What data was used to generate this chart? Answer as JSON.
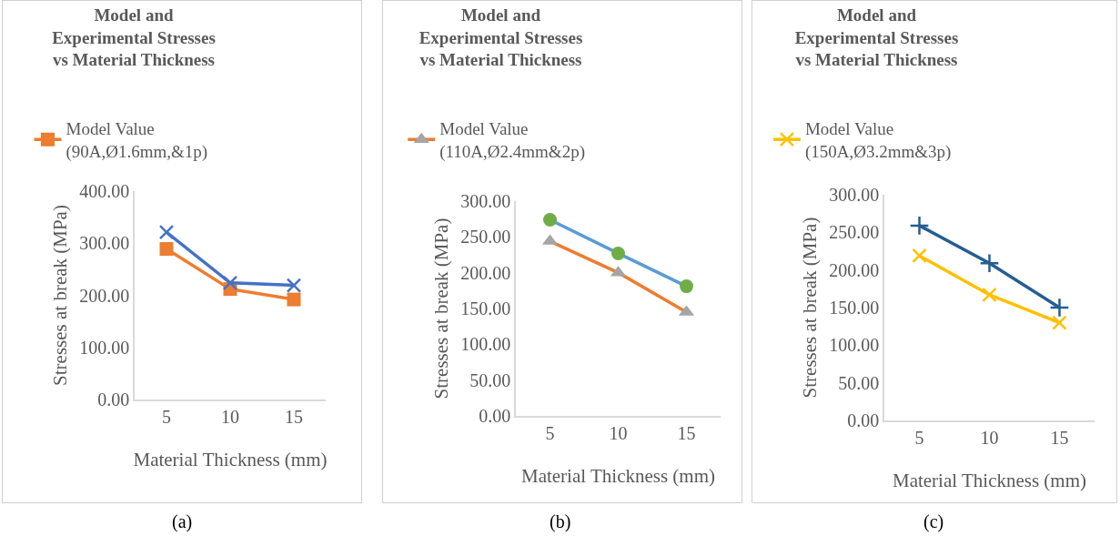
{
  "chart_data": [
    {
      "type": "line",
      "title": "Model and Experimental Stresses vs Material Thickness",
      "xlabel": "Material Thickness (mm)",
      "ylabel": "Stresses at break (MPa)",
      "categories": [
        "5",
        "10",
        "15"
      ],
      "ylim": [
        0,
        400
      ],
      "yticks": [
        {
          "value": 0,
          "label": "0.00"
        },
        {
          "value": 100,
          "label": "100.00"
        },
        {
          "value": 200,
          "label": "200.00"
        },
        {
          "value": 300,
          "label": "300.00"
        },
        {
          "value": 400,
          "label": "400.00"
        }
      ],
      "grid": false,
      "legend": "top",
      "annotations": [
        "(a)"
      ],
      "series": [
        {
          "name": "Model Value (90A,Ø1.6mm,&1p)",
          "color": "#ed7d31",
          "marker": "square",
          "values": [
            289,
            212,
            192
          ]
        },
        {
          "color": "#4472c4",
          "marker": "cross",
          "values": [
            321,
            224,
            219
          ]
        }
      ]
    },
    {
      "type": "line",
      "title": "Model and Experimental Stresses vs Material Thickness",
      "xlabel": "Material Thickness (mm)",
      "ylabel": "Stresses at break (MPa)",
      "categories": [
        "5",
        "10",
        "15"
      ],
      "ylim": [
        0,
        300
      ],
      "yticks": [
        {
          "value": 0,
          "label": "0.00"
        },
        {
          "value": 50,
          "label": "50.00"
        },
        {
          "value": 100,
          "label": "100.00"
        },
        {
          "value": 150,
          "label": "150.00"
        },
        {
          "value": 200,
          "label": "200.00"
        },
        {
          "value": 250,
          "label": "250.00"
        },
        {
          "value": 300,
          "label": "300.00"
        }
      ],
      "grid": false,
      "legend": "top",
      "annotations": [
        "(b)"
      ],
      "series": [
        {
          "name": "Model Value (110A,Ø2.4mm&2p)",
          "color": "#ed7d31",
          "colors": [
            "#a5a5a5",
            "#a5a5a5",
            "#a5a5a5"
          ],
          "marker": "triangle",
          "values": [
            244,
            200,
            145
          ]
        },
        {
          "color": "#5b9bd5",
          "colors": [
            "#70ad47",
            "#70ad47",
            "#70ad47"
          ],
          "marker": "circle",
          "values": [
            274,
            227,
            181
          ]
        }
      ]
    },
    {
      "type": "line",
      "title": "Model and Experimental Stresses vs Material Thickness",
      "xlabel": "Material Thickness (mm)",
      "ylabel": "Stresses at break (MPa)",
      "categories": [
        "5",
        "10",
        "15"
      ],
      "ylim": [
        0,
        300
      ],
      "yticks": [
        {
          "value": 0,
          "label": "0.00"
        },
        {
          "value": 50,
          "label": "50.00"
        },
        {
          "value": 100,
          "label": "100.00"
        },
        {
          "value": 150,
          "label": "150.00"
        },
        {
          "value": 200,
          "label": "200.00"
        },
        {
          "value": 250,
          "label": "250.00"
        },
        {
          "value": 300,
          "label": "300.00"
        }
      ],
      "grid": false,
      "legend": "top",
      "annotations": [
        "(c)"
      ],
      "series": [
        {
          "name": "Model Value (150A,Ø3.2mm&3p)",
          "color": "#ffc000",
          "marker": "cross",
          "values": [
            219,
            167,
            130
          ]
        },
        {
          "color": "#255e91",
          "marker": "plus",
          "values": [
            259,
            209,
            150
          ]
        }
      ]
    }
  ]
}
